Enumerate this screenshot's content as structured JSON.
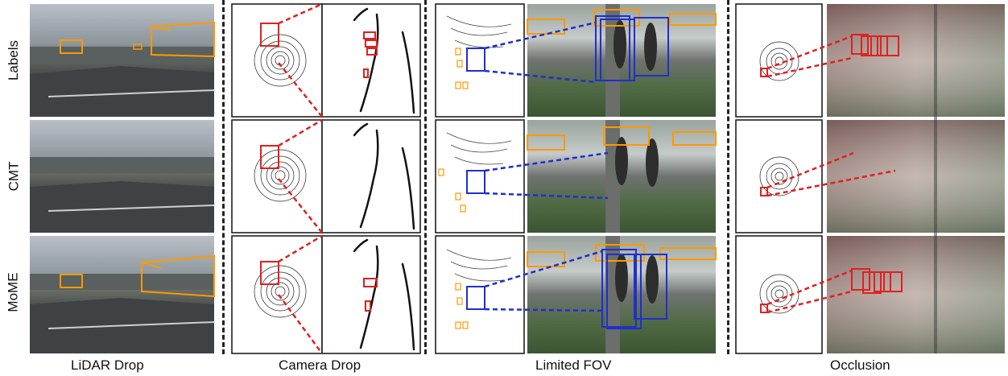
{
  "rows": [
    "Labels",
    "CMT",
    "MoME"
  ],
  "columns": [
    "LiDAR Drop",
    "Camera Drop",
    "Limited FOV",
    "Occlusion"
  ],
  "colors": {
    "ground_truth_box": "#ff9900",
    "highlight_box_red": "#e02020",
    "highlight_box_blue": "#1f2fd0",
    "lidar_points": "#111111"
  }
}
